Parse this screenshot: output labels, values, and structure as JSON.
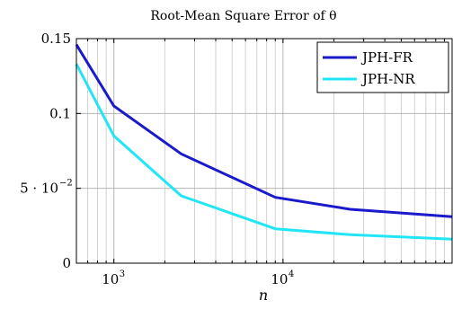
{
  "chart_data": {
    "type": "line",
    "title": "Root-Mean Square Error of θ",
    "xlabel": "n",
    "ylabel": "",
    "x_scale": "log",
    "xlim": [
      600,
      100000
    ],
    "ylim": [
      0,
      0.15
    ],
    "grid": true,
    "legend_position": "top-right",
    "x_ticks": [
      {
        "base": "10",
        "exp": "3",
        "value": 1000
      },
      {
        "base": "10",
        "exp": "4",
        "value": 10000
      }
    ],
    "y_ticks": [
      {
        "label": "0",
        "value": 0
      },
      {
        "label": "5 · 10",
        "exp": "−2",
        "value": 0.05
      },
      {
        "label": "0.1",
        "value": 0.1
      },
      {
        "label": "0.15",
        "value": 0.15
      }
    ],
    "series": [
      {
        "name": "JPH-FR",
        "color": "#1a1acc",
        "points": [
          [
            600,
            0.146
          ],
          [
            1000,
            0.105
          ],
          [
            2500,
            0.073
          ],
          [
            9000,
            0.044
          ],
          [
            25000,
            0.036
          ],
          [
            100000,
            0.031
          ]
        ]
      },
      {
        "name": "JPH-NR",
        "color": "#22e5f5",
        "points": [
          [
            600,
            0.133
          ],
          [
            1000,
            0.085
          ],
          [
            2500,
            0.045
          ],
          [
            9000,
            0.023
          ],
          [
            25000,
            0.019
          ],
          [
            100000,
            0.016
          ]
        ]
      }
    ]
  }
}
